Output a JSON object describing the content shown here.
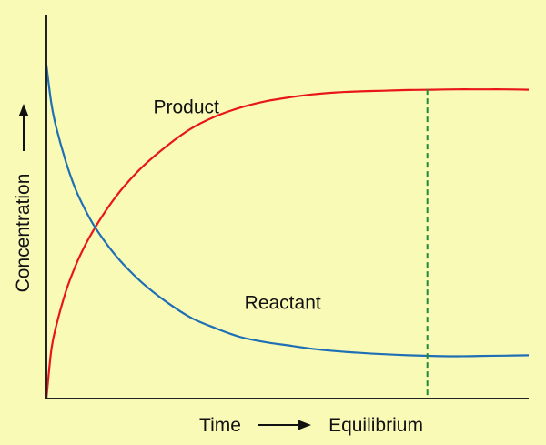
{
  "background": "#fafab7",
  "chart_data": {
    "type": "line",
    "title": "",
    "xlabel": "Time",
    "xlabel_suffix": "Equilibrium",
    "ylabel": "Concentration",
    "axis_color": "#222222",
    "grid": false,
    "xlim": [
      0,
      100
    ],
    "ylim": [
      0,
      100
    ],
    "series": [
      {
        "name": "Product",
        "color": "#e8161b",
        "x": [
          0,
          1,
          2,
          4,
          6,
          8,
          10,
          13,
          16,
          20,
          25,
          30,
          35,
          40,
          45,
          50,
          55,
          60,
          65,
          70,
          75,
          80,
          85,
          90,
          95,
          100
        ],
        "y": [
          0,
          14,
          21,
          31,
          38.5,
          44.5,
          49.5,
          56,
          61.5,
          67.5,
          73.5,
          78.5,
          82,
          84.5,
          86.3,
          87.5,
          88.4,
          89,
          89.3,
          89.5,
          89.7,
          89.8,
          89.9,
          89.9,
          89.9,
          89.8
        ]
      },
      {
        "name": "Reactant",
        "color": "#1f6fb5",
        "x": [
          0,
          1,
          2,
          4,
          6,
          8,
          10,
          13,
          16,
          20,
          25,
          30,
          35,
          40,
          45,
          50,
          55,
          60,
          65,
          70,
          75,
          80,
          85,
          90,
          95,
          100
        ],
        "y": [
          97,
          86,
          79,
          69,
          61,
          55,
          50,
          44,
          39,
          33.5,
          28,
          23.5,
          20.5,
          18,
          16.5,
          15.5,
          14.5,
          13.8,
          13.3,
          12.9,
          12.6,
          12.4,
          12.3,
          12.4,
          12.5,
          12.6
        ]
      }
    ],
    "annotations": [
      {
        "text": "Product",
        "x": 29,
        "y": 83
      },
      {
        "text": "Reactant",
        "x": 49,
        "y": 26
      }
    ],
    "equilibrium_line": {
      "x": 79,
      "color": "#1f8a3a",
      "style": "dashed"
    }
  }
}
